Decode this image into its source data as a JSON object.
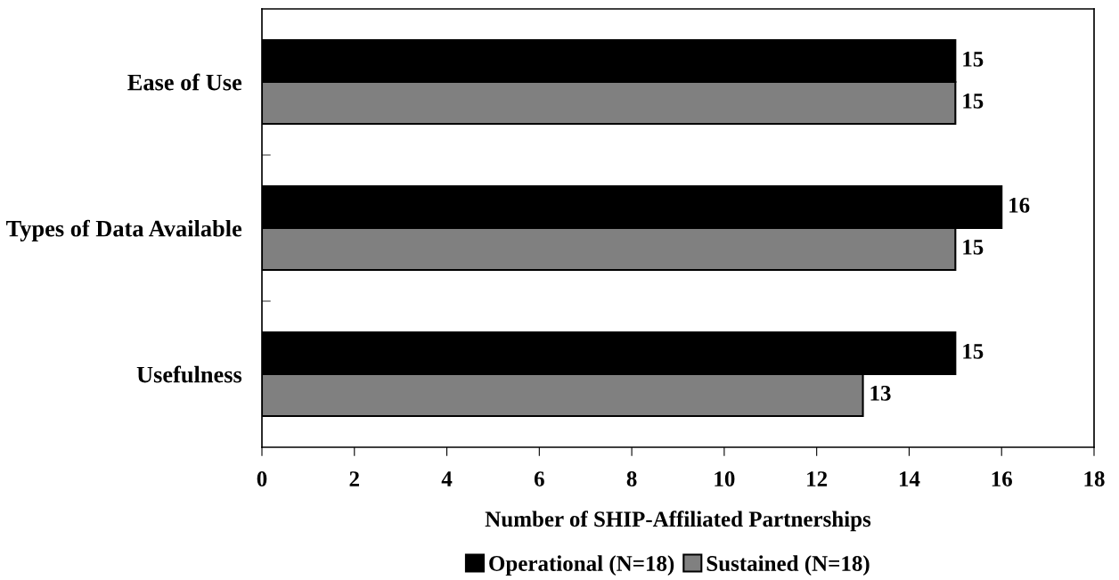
{
  "chart_data": {
    "type": "bar",
    "orientation": "horizontal",
    "categories": [
      "Ease of Use",
      "Types of Data Available",
      "Usefulness"
    ],
    "series": [
      {
        "name": "Operational (N=18)",
        "color": "#000000",
        "values": [
          15,
          16,
          15
        ]
      },
      {
        "name": "Sustained (N=18)",
        "color": "#808080",
        "values": [
          15,
          15,
          13
        ]
      }
    ],
    "xlim": [
      0,
      18
    ],
    "xticks": [
      0,
      2,
      4,
      6,
      8,
      10,
      12,
      14,
      16,
      18
    ],
    "xlabel": "Number of SHIP-Affiliated Partnerships",
    "data_labels": true,
    "legend": "bottom"
  }
}
